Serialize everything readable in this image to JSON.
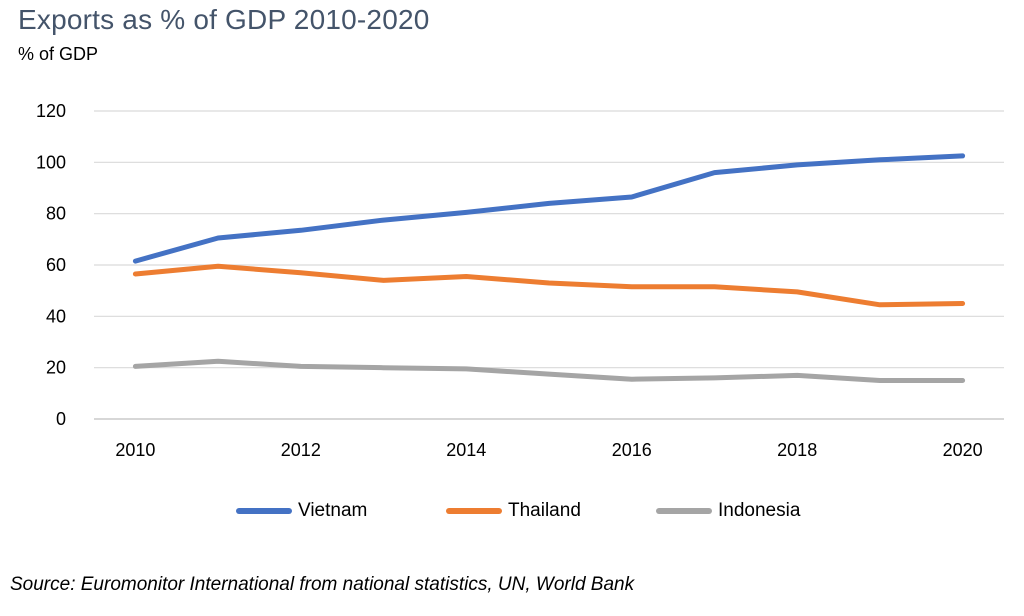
{
  "chart_data": {
    "type": "line",
    "title": "Exports as % of GDP 2010-2020",
    "ylabel": "% of GDP",
    "xlabel": "",
    "x": [
      2010,
      2011,
      2012,
      2013,
      2014,
      2015,
      2016,
      2017,
      2018,
      2019,
      2020
    ],
    "x_tick_labels": [
      "2010",
      "2012",
      "2014",
      "2016",
      "2018",
      "2020"
    ],
    "y_tick_labels": [
      "0",
      "20",
      "40",
      "60",
      "80",
      "100",
      "120"
    ],
    "ylim": [
      0,
      120
    ],
    "grid": true,
    "legend_position": "bottom",
    "series": [
      {
        "name": "Vietnam",
        "color": "#4472C4",
        "values": [
          61.5,
          70.5,
          73.5,
          77.5,
          80.5,
          84,
          86.5,
          96,
          99,
          101,
          102.5
        ]
      },
      {
        "name": "Thailand",
        "color": "#ED7D31",
        "values": [
          56.5,
          59.5,
          57,
          54,
          55.5,
          53,
          51.5,
          51.5,
          49.5,
          44.5,
          45
        ]
      },
      {
        "name": "Indonesia",
        "color": "#A5A5A5",
        "values": [
          20.5,
          22.5,
          20.5,
          20,
          19.5,
          17.5,
          15.5,
          16,
          17,
          15,
          15
        ]
      }
    ],
    "source": "Source: Euromonitor International from national statistics, UN, World Bank"
  }
}
